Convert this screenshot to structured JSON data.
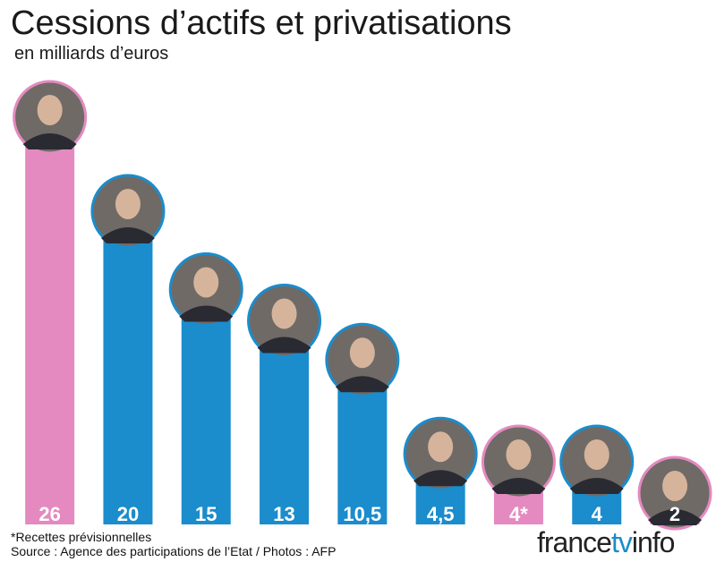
{
  "chart_data": {
    "type": "bar",
    "title": "Cessions d’actifs et privatisations",
    "subtitle": "en milliards d’euros",
    "categories": [
      null,
      null,
      null,
      null,
      null,
      null,
      null,
      null,
      null
    ],
    "values": [
      26,
      20,
      15,
      13,
      10.5,
      4.5,
      4,
      4,
      2
    ],
    "value_labels": [
      "26",
      "20",
      "15",
      "13",
      "10,5",
      "4,5",
      "4*",
      "4",
      "2"
    ],
    "colors": [
      "#e48ac0",
      "#1b8ccc",
      "#1b8ccc",
      "#1b8ccc",
      "#1b8ccc",
      "#1b8ccc",
      "#e48ac0",
      "#1b8ccc",
      "#e48ac0"
    ],
    "footnote": "*Recettes prévisionnelles",
    "source": "Source : Agence des participations de l’Etat / Photos : AFP",
    "logo": {
      "a": "france",
      "b": "tv",
      "c": "info"
    }
  }
}
